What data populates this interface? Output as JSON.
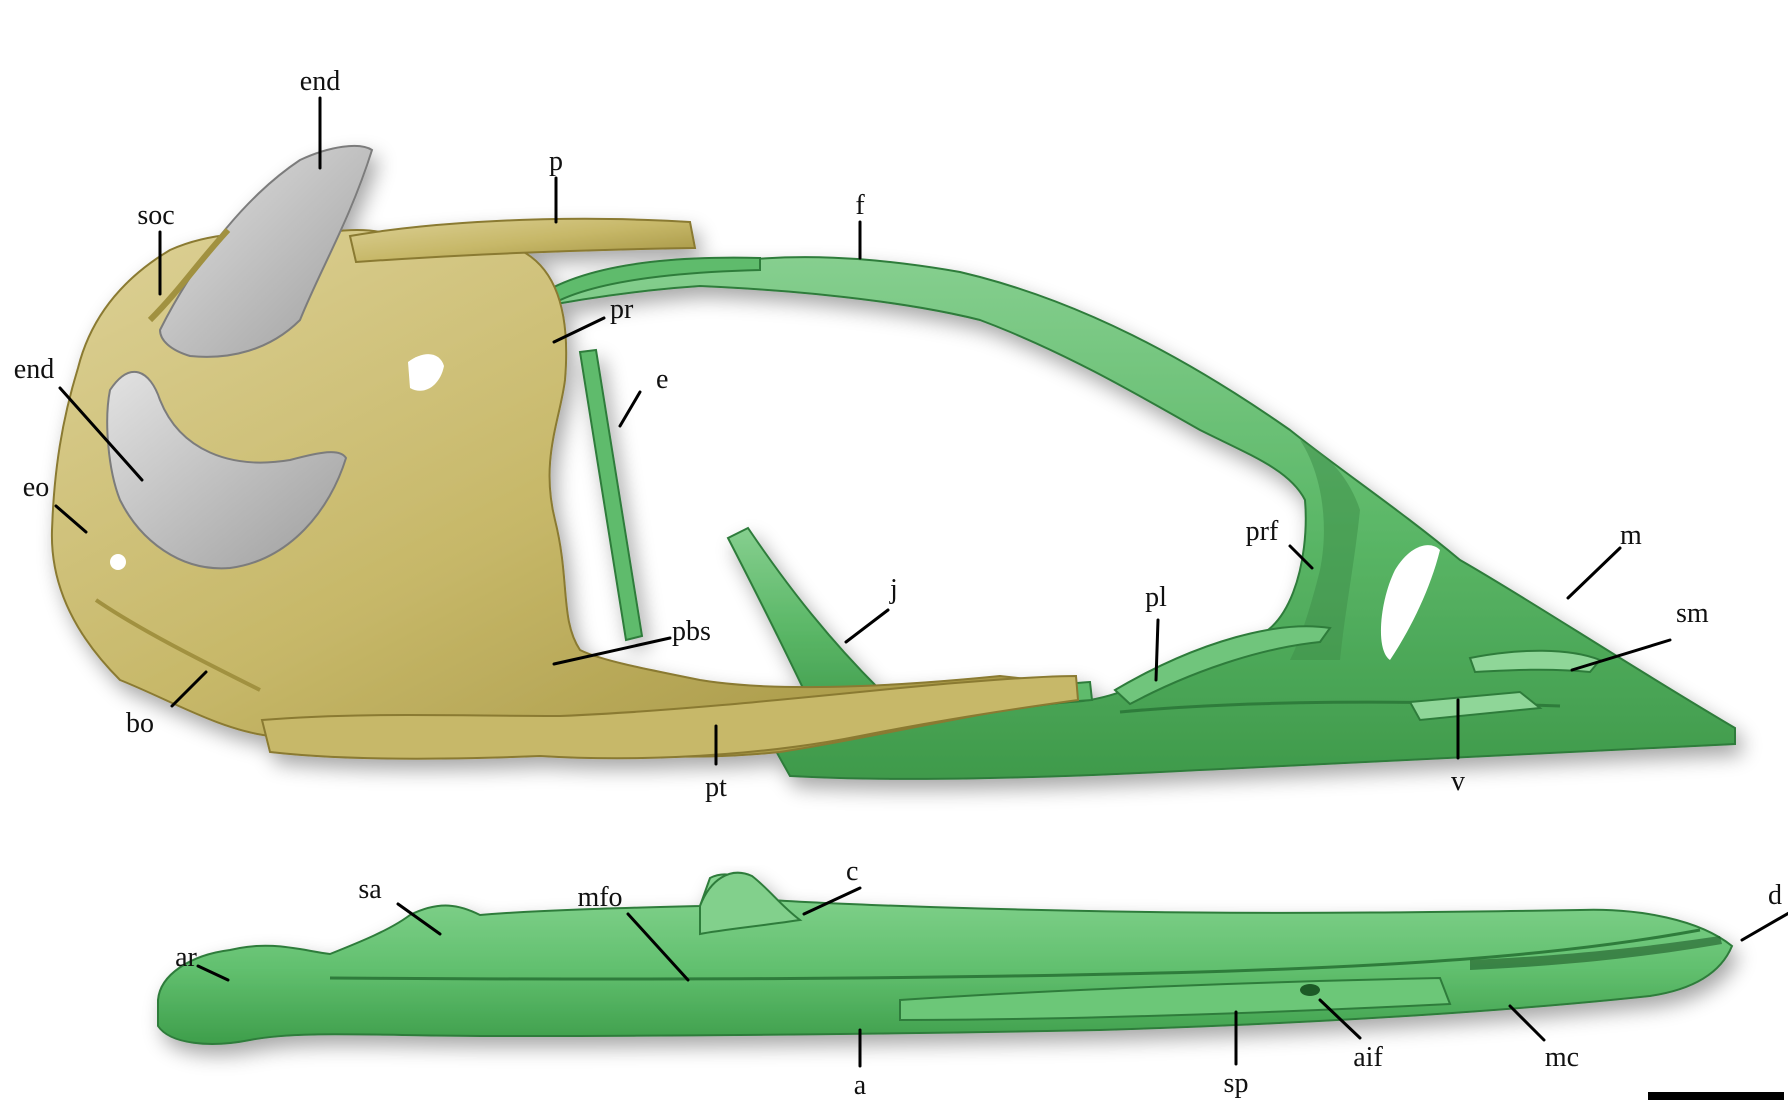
{
  "colors": {
    "braincase": "#c7b869",
    "braincase_dark": "#a1913f",
    "braincase_light": "#ddd196",
    "endocast": "#b8b8b8",
    "endocast_light": "#dcdcdc",
    "green": "#5fbb6c",
    "green_dark": "#2f7c3b",
    "green_light": "#90d699",
    "leader": "#000000",
    "scale_bar": "#000000"
  },
  "labels": {
    "end_top": "end",
    "p": "p",
    "f": "f",
    "soc": "soc",
    "pr": "pr",
    "end_left": "end",
    "e": "e",
    "eo": "eo",
    "prf": "prf",
    "m": "m",
    "j": "j",
    "pl": "pl",
    "sm": "sm",
    "pbs": "pbs",
    "bo": "bo",
    "pt": "pt",
    "v": "v",
    "sa": "sa",
    "mfo": "mfo",
    "c": "c",
    "d": "d",
    "ar": "ar",
    "aif": "aif",
    "mc": "mc",
    "a": "a",
    "sp": "sp"
  },
  "scale_bar": {
    "label": ""
  }
}
